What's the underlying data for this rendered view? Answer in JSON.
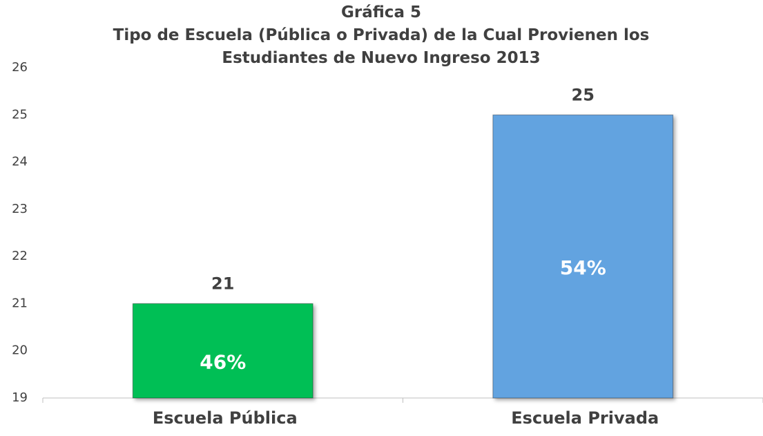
{
  "chart_data": {
    "type": "bar",
    "title": "Gráfica 5",
    "subtitle": "Tipo de Escuela (Pública o Privada) de la Cual Provienen los Estudiantes de Nuevo Ingreso 2013",
    "categories": [
      "Escuela Pública",
      "Escuela Privada"
    ],
    "values": [
      21,
      25
    ],
    "percent_labels": [
      "46%",
      "54%"
    ],
    "colors": [
      "#06bf55",
      "#62a3e0"
    ],
    "ylim": [
      19,
      26
    ],
    "yticks": [
      19,
      20,
      21,
      22,
      23,
      24,
      25,
      26
    ],
    "grid": false
  }
}
